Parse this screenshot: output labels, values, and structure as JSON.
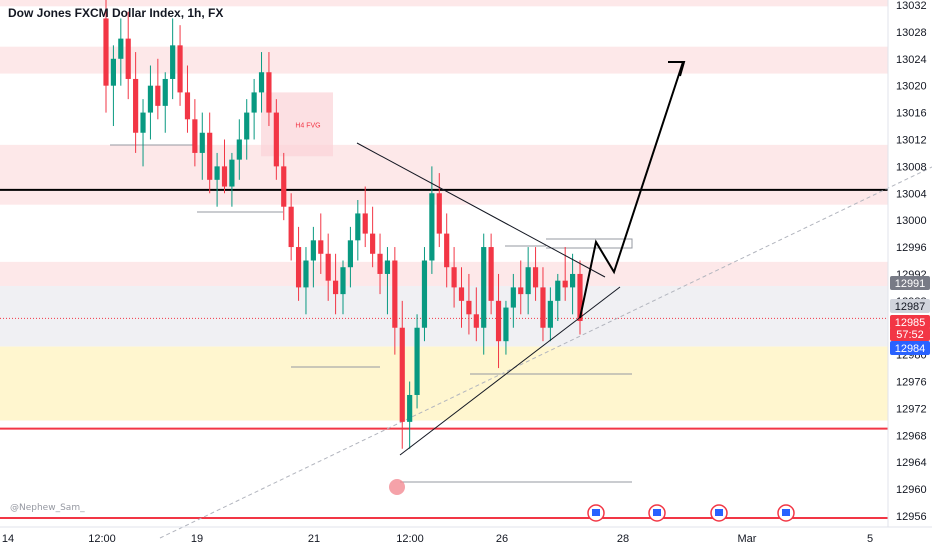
{
  "header": {
    "title": "Dow Jones FXCM Dollar Index, 1h, FX"
  },
  "watermark": "@Nephew_Sam_",
  "chart_data": {
    "type": "candlestick",
    "ylim": [
      12954,
      13034
    ],
    "y_ticks": [
      12956,
      12960,
      12964,
      12968,
      12972,
      12976,
      12980,
      12984,
      12988,
      12992,
      12996,
      13000,
      13004,
      13008,
      13012,
      13016,
      13020,
      13024,
      13028,
      13032
    ],
    "x_ticks": [
      "14",
      "12:00",
      "19",
      "21",
      "12:00",
      "26",
      "28",
      "Mar",
      "5"
    ],
    "price_tags": [
      {
        "label": "12991",
        "bg": "#787b86",
        "fg": "#ffffff"
      },
      {
        "label": "12987",
        "bg": "#d1d4dc",
        "fg": "#131722"
      },
      {
        "label": "12985",
        "bg": "#f23645",
        "fg": "#ffffff"
      },
      {
        "label": "57:52",
        "bg": "#f23645",
        "fg": "#ffffff"
      },
      {
        "label": "12984",
        "bg": "#2962ff",
        "fg": "#ffffff"
      }
    ],
    "zones": [
      {
        "y1": 13031.8,
        "y2": 13034,
        "color": "#fde2e4",
        "alpha": 0.8
      },
      {
        "y1": 13021.8,
        "y2": 13025.8,
        "color": "#fde2e4",
        "alpha": 0.8
      },
      {
        "y1": 13002.3,
        "y2": 13011.2,
        "color": "#fde2e4",
        "alpha": 0.8
      },
      {
        "y1": 12990.2,
        "y2": 12993.8,
        "color": "#fde2e4",
        "alpha": 0.8
      },
      {
        "y1": 12981.2,
        "y2": 12990.2,
        "color": "#f0f0f3",
        "alpha": 1
      },
      {
        "y1": 12970.2,
        "y2": 12981.2,
        "color": "#fff6cf",
        "alpha": 1
      }
    ],
    "fvg_label": "H4 FVG",
    "h4_fvg_zone": {
      "y1": 13009.5,
      "y2": 13019.0
    },
    "horizontal_lines": [
      {
        "y": 13004.5,
        "color": "#000000",
        "width": 2
      },
      {
        "y": 12969.0,
        "color": "#f23645",
        "width": 2
      },
      {
        "y": 12955.7,
        "color": "#f23645",
        "width": 2
      }
    ],
    "current_price": 12985.4,
    "candles": [
      [
        13030,
        13034,
        13016,
        13020
      ],
      [
        13020,
        13026,
        13014,
        13024
      ],
      [
        13024,
        13030,
        13020,
        13027
      ],
      [
        13027,
        13031,
        13018,
        13021
      ],
      [
        13021,
        13025,
        13010,
        13013
      ],
      [
        13013,
        13018,
        13008,
        13016
      ],
      [
        13016,
        13023,
        13012,
        13020
      ],
      [
        13020,
        13024,
        13015,
        13017
      ],
      [
        13017,
        13022,
        13013,
        13021
      ],
      [
        13021,
        13030,
        13018,
        13026
      ],
      [
        13026,
        13029,
        13017,
        13019
      ],
      [
        13019,
        13023,
        13013,
        13015
      ],
      [
        13015,
        13018,
        13008,
        13010
      ],
      [
        13010,
        13016,
        13006,
        13013
      ],
      [
        13013,
        13016,
        13004,
        13006
      ],
      [
        13006,
        13010,
        13002,
        13008
      ],
      [
        13008,
        13012,
        13004,
        13005
      ],
      [
        13005,
        13010,
        13002,
        13009
      ],
      [
        13009,
        13015,
        13006,
        13012
      ],
      [
        13012,
        13018,
        13009,
        13016
      ],
      [
        13016,
        13021,
        13012,
        13019
      ],
      [
        13019,
        13025,
        13016,
        13022
      ],
      [
        13022,
        13025,
        13014,
        13016
      ],
      [
        13016,
        13018,
        13006,
        13008
      ],
      [
        13008,
        13010,
        13000,
        13002
      ],
      [
        13002,
        13004,
        12994,
        12996
      ],
      [
        12996,
        12999,
        12988,
        12990
      ],
      [
        12990,
        12996,
        12986,
        12994
      ],
      [
        12994,
        12999,
        12990,
        12997
      ],
      [
        12997,
        13001,
        12992,
        12995
      ],
      [
        12995,
        12998,
        12988,
        12991
      ],
      [
        12991,
        12995,
        12986,
        12989
      ],
      [
        12989,
        12994,
        12986,
        12993
      ],
      [
        12993,
        12999,
        12990,
        12997
      ],
      [
        12997,
        13003,
        12994,
        13001
      ],
      [
        13001,
        13005,
        12996,
        12998
      ],
      [
        12998,
        13002,
        12993,
        12995
      ],
      [
        12995,
        12998,
        12989,
        12992
      ],
      [
        12992,
        12996,
        12986,
        12994
      ],
      [
        12994,
        12996,
        12980,
        12984
      ],
      [
        12984,
        12988,
        12966,
        12970
      ],
      [
        12970,
        12976,
        12966,
        12974
      ],
      [
        12974,
        12986,
        12972,
        12984
      ],
      [
        12984,
        12996,
        12982,
        12994
      ],
      [
        12994,
        13008,
        12992,
        13004
      ],
      [
        13004,
        13007,
        12996,
        12998
      ],
      [
        12998,
        13001,
        12990,
        12993
      ],
      [
        12993,
        12996,
        12987,
        12990
      ],
      [
        12990,
        12993,
        12984,
        12988
      ],
      [
        12988,
        12992,
        12983,
        12986
      ],
      [
        12986,
        12990,
        12982,
        12984
      ],
      [
        12984,
        12998,
        12980,
        12996
      ],
      [
        12996,
        12998,
        12986,
        12988
      ],
      [
        12988,
        12992,
        12978,
        12982
      ],
      [
        12982,
        12988,
        12980,
        12987
      ],
      [
        12987,
        12992,
        12984,
        12990
      ],
      [
        12990,
        12994,
        12986,
        12989
      ],
      [
        12989,
        12996,
        12986,
        12993
      ],
      [
        12993,
        12996,
        12988,
        12990
      ],
      [
        12990,
        12993,
        12982,
        12984
      ],
      [
        12984,
        12990,
        12982,
        12988
      ],
      [
        12988,
        12992,
        12985,
        12991
      ],
      [
        12991,
        12996,
        12988,
        12990
      ],
      [
        12990,
        12995,
        12986,
        12992
      ],
      [
        12992,
        12994,
        12983,
        12985
      ]
    ]
  }
}
